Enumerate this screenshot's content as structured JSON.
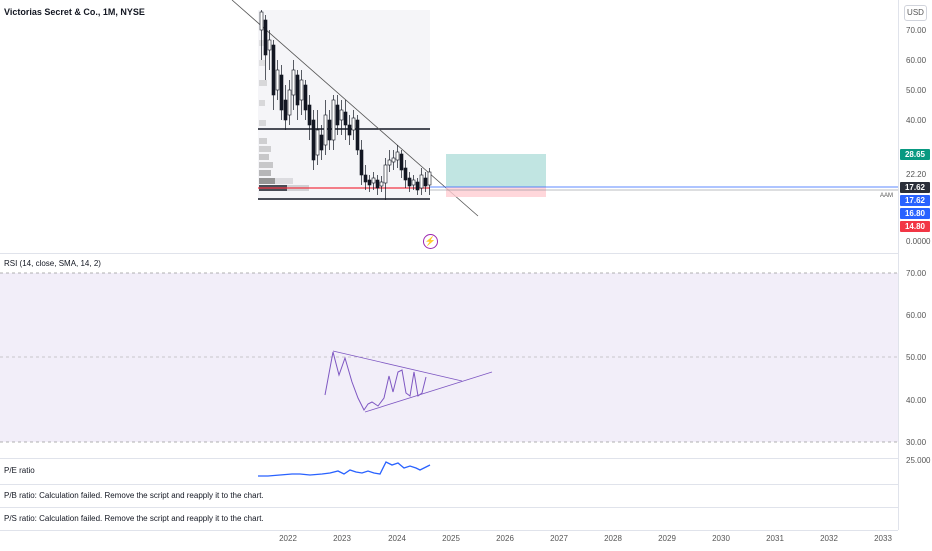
{
  "header": {
    "symbol_title": "Victorias Secret & Co., 1M, NYSE",
    "currency": "USD"
  },
  "price_axis": {
    "ticks": [
      "70.00",
      "60.00",
      "50.00",
      "40.00",
      "22.20",
      "0.0000"
    ],
    "tags": [
      {
        "text": "28.65",
        "color": "#089981"
      },
      {
        "text": "17.62",
        "color": "#2a2e39"
      },
      {
        "text": "17.62",
        "color": "#2962ff"
      },
      {
        "text": "16.80",
        "color": "#2962ff"
      },
      {
        "text": "14.80",
        "color": "#f23645"
      }
    ],
    "mini_marker": "AAM"
  },
  "rsi": {
    "title": "RSI (14, close, SMA, 14, 2)",
    "ticks": [
      "70.00",
      "60.00",
      "50.00",
      "40.00",
      "30.00"
    ]
  },
  "fundamentals": {
    "pe_title": "P/E ratio",
    "pe_tick": "25.000",
    "pb_title": "P/B ratio: Calculation failed. Remove the script and reapply it to the chart.",
    "ps_title": "P/S ratio: Calculation failed. Remove the script and reapply it to the chart."
  },
  "time_axis": {
    "years": [
      "2022",
      "2023",
      "2024",
      "2025",
      "2026",
      "2027",
      "2028",
      "2029",
      "2030",
      "2031",
      "2032",
      "2033"
    ]
  },
  "colors": {
    "up": "#ffffff",
    "down": "#131722",
    "rsi_line": "#7e57c2",
    "rsi_band": "#ede7f6",
    "pe_line": "#2962ff",
    "long_profit": "#b2dfdb",
    "long_loss": "#ffcdd2"
  },
  "icons": {
    "event_marker": "lightning-icon"
  }
}
